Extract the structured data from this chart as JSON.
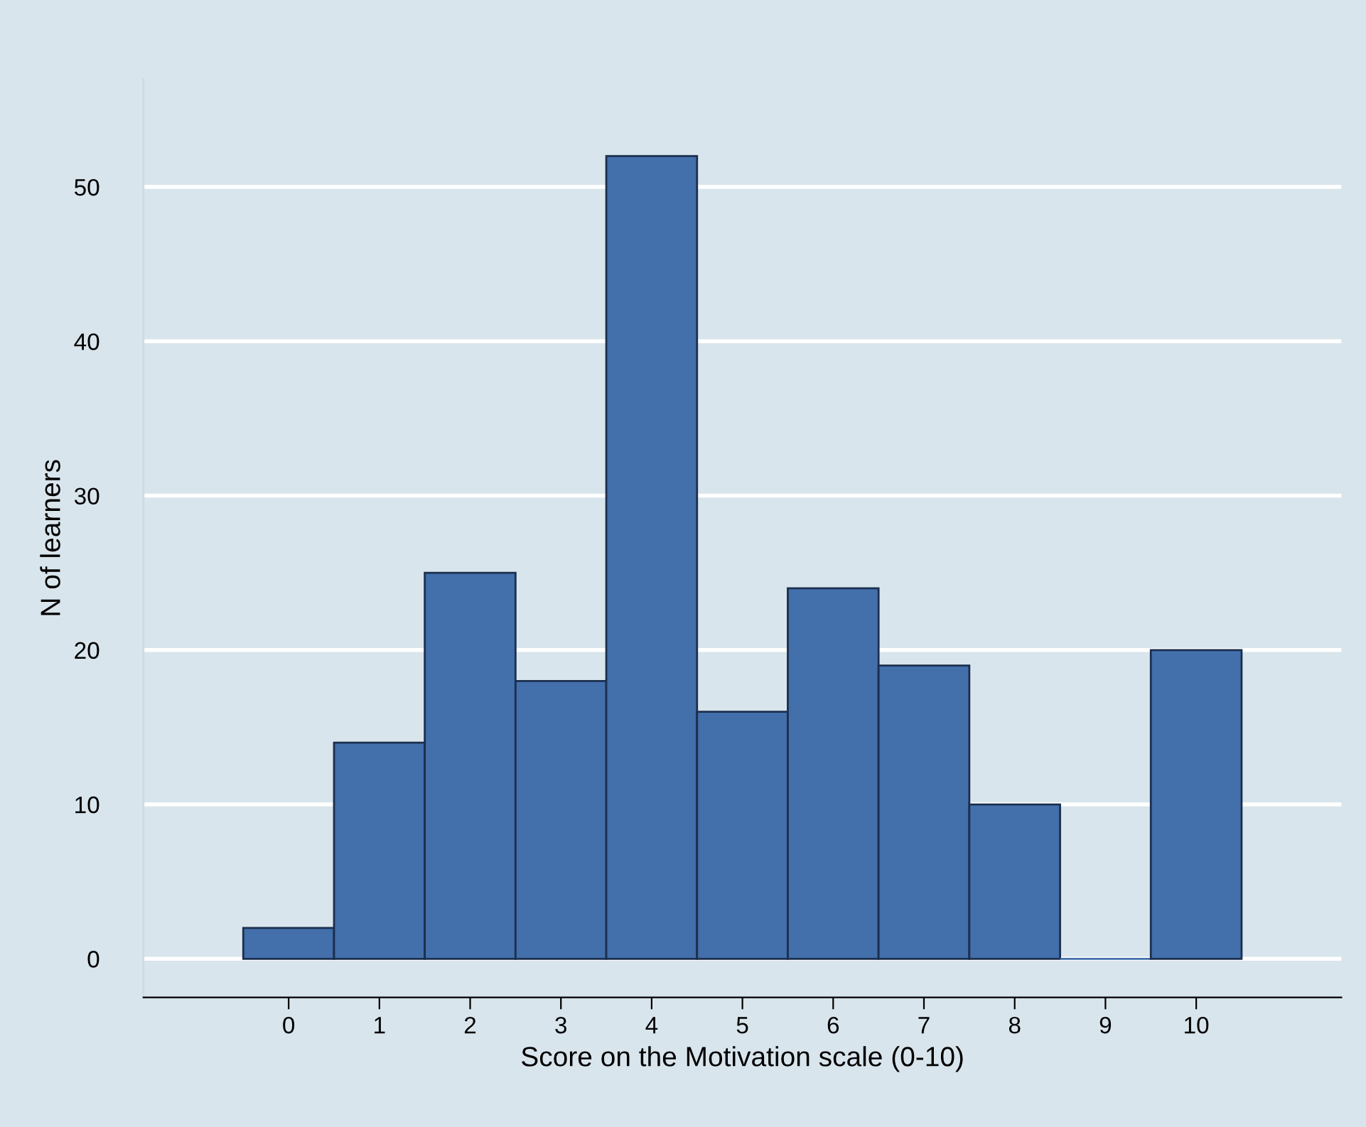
{
  "chart_data": {
    "type": "histogram",
    "xlabel": "Score on the Motivation scale (0-10)",
    "ylabel": "N of learners",
    "bins": [
      -0.5,
      0.5,
      1.5,
      2.5,
      3.5,
      4.5,
      5.5,
      6.5,
      7.5,
      8.5,
      9.5,
      10.5
    ],
    "values": [
      2,
      14,
      25,
      18,
      52,
      16,
      24,
      19,
      10,
      0,
      20
    ],
    "color": "#436fab",
    "xlim": [
      -1.6,
      11.6
    ],
    "xticks": [
      0,
      1,
      2,
      3,
      4,
      5,
      6,
      7,
      8,
      9,
      10
    ],
    "ylim": [
      -2.5,
      57
    ],
    "yticks": [
      0,
      10,
      20,
      30,
      40,
      50
    ],
    "grid": "y",
    "legend": false
  }
}
